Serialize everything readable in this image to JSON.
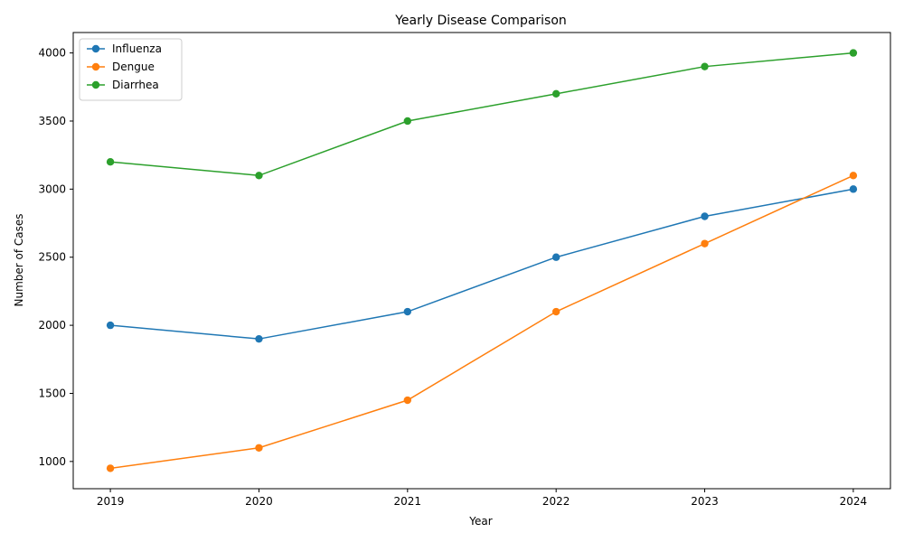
{
  "chart_data": {
    "type": "line",
    "title": "Yearly Disease Comparison",
    "xlabel": "Year",
    "ylabel": "Number of Cases",
    "x": [
      2019,
      2020,
      2021,
      2022,
      2023,
      2024
    ],
    "xlim": [
      2018.75,
      2024.25
    ],
    "ylim": [
      800,
      4150
    ],
    "yticks": [
      1000,
      1500,
      2000,
      2500,
      3000,
      3500,
      4000
    ],
    "grid": false,
    "legend": "top-left",
    "series": [
      {
        "name": "Influenza",
        "color": "#1f77b4",
        "marker": "circle",
        "values": [
          2000,
          1900,
          2100,
          2500,
          2800,
          3000
        ]
      },
      {
        "name": "Dengue",
        "color": "#ff7f0e",
        "marker": "circle",
        "values": [
          950,
          1100,
          1450,
          2100,
          2600,
          3100
        ]
      },
      {
        "name": "Diarrhea",
        "color": "#2ca02c",
        "marker": "circle",
        "values": [
          3200,
          3100,
          3500,
          3700,
          3900,
          4000
        ]
      }
    ]
  }
}
